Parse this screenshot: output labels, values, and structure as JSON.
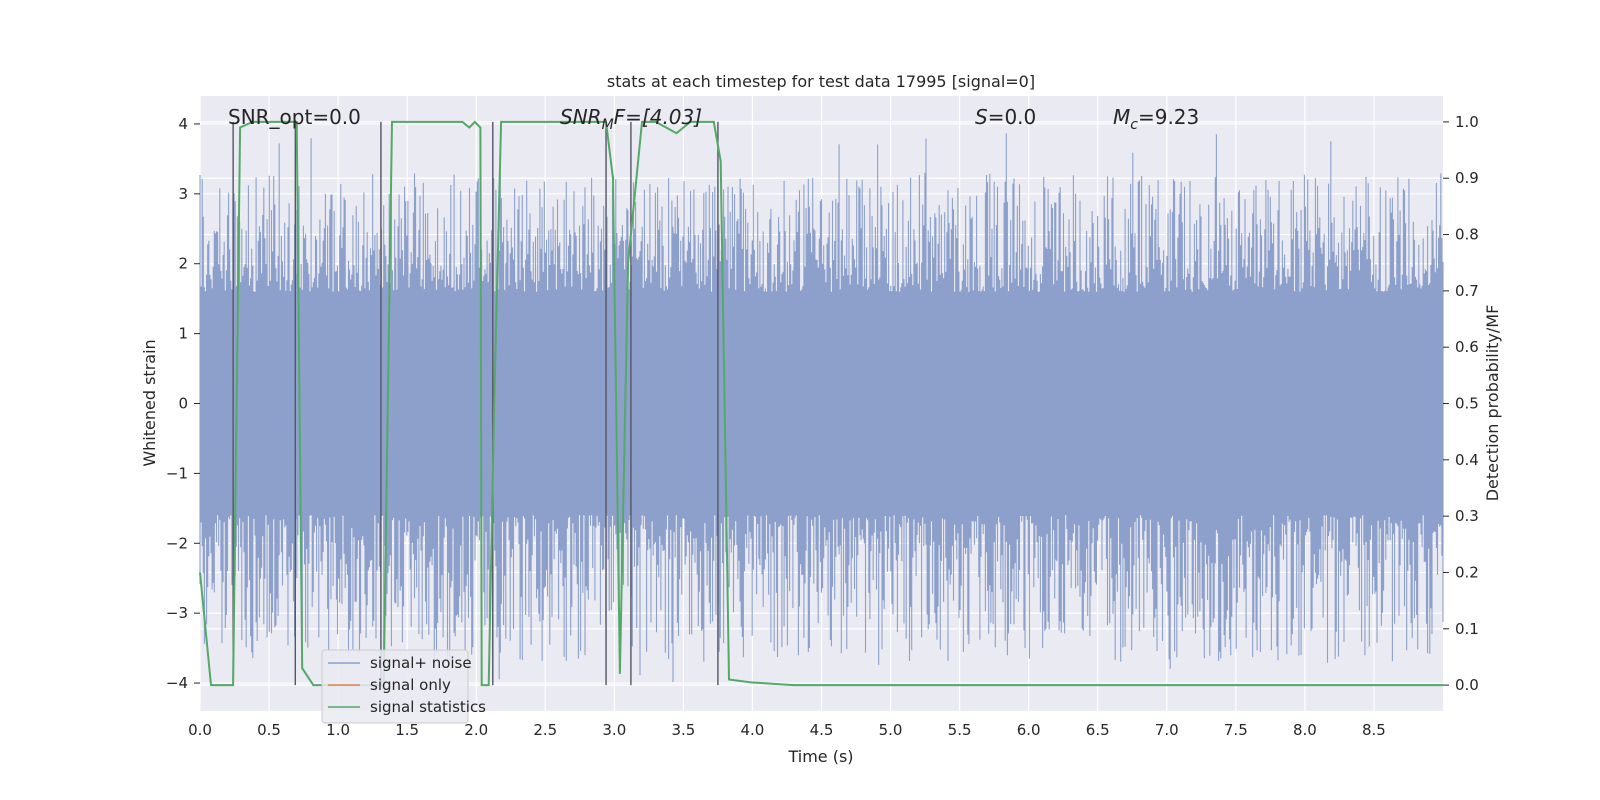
{
  "chart_data": {
    "type": "line",
    "title": "stats at each timestep for test data 17995 [signal=0]",
    "xlabel": "Time (s)",
    "ylabel": "Whitened strain",
    "y2label": "Detection probability/MF",
    "xlim": [
      0,
      9
    ],
    "ylim": [
      -4.4,
      4.4
    ],
    "y2lim": [
      -0.046,
      1.046
    ],
    "xticks": [
      0.0,
      0.5,
      1.0,
      1.5,
      2.0,
      2.5,
      3.0,
      3.5,
      4.0,
      4.5,
      5.0,
      5.5,
      6.0,
      6.5,
      7.0,
      7.5,
      8.0,
      8.5
    ],
    "xtick_labels": [
      "0.0",
      "0.5",
      "1.0",
      "1.5",
      "2.0",
      "2.5",
      "3.0",
      "3.5",
      "4.0",
      "4.5",
      "5.0",
      "5.5",
      "6.0",
      "6.5",
      "7.0",
      "7.5",
      "8.0",
      "8.5"
    ],
    "yticks": [
      -4,
      -3,
      -2,
      -1,
      0,
      1,
      2,
      3,
      4
    ],
    "ytick_labels": [
      "−4",
      "−3",
      "−2",
      "−1",
      "0",
      "1",
      "2",
      "3",
      "4"
    ],
    "y2ticks": [
      0.0,
      0.1,
      0.2,
      0.3,
      0.4,
      0.5,
      0.6,
      0.7,
      0.8,
      0.9,
      1.0
    ],
    "y2tick_labels": [
      "0.0",
      "0.1",
      "0.2",
      "0.3",
      "0.4",
      "0.5",
      "0.6",
      "0.7",
      "0.8",
      "0.9",
      "1.0"
    ],
    "annotations": {
      "snr_opt": "SNR_opt=0.0",
      "snr_mf_base": "SNR",
      "snr_mf_sub": "M",
      "snr_mf_rest": "F=[4.03]",
      "s_italic": "S",
      "s_rest": "=0.0",
      "mc_base": "M",
      "mc_sub": "c",
      "mc_rest": "=9.23"
    },
    "series": [
      {
        "name": "signal+ noise",
        "color": "#8da0cb",
        "kind": "noise",
        "seed": 17995,
        "core_sigma": 1.6,
        "peak_range": [
          1.5,
          3.3
        ]
      },
      {
        "name": "signal only",
        "color": "#dd8452",
        "kind": "line",
        "x": [],
        "y": []
      },
      {
        "name": "signal statistics",
        "color": "#55a868",
        "kind": "line",
        "axis": "right",
        "x": [
          0.0,
          0.08,
          0.24,
          0.29,
          0.38,
          0.65,
          0.7,
          0.74,
          0.82,
          1.33,
          1.36,
          1.39,
          1.9,
          1.95,
          1.99,
          2.03,
          2.04,
          2.09,
          2.13,
          2.18,
          2.9,
          2.94,
          2.99,
          3.04,
          3.1,
          3.2,
          3.3,
          3.45,
          3.55,
          3.65,
          3.72,
          3.77,
          3.83,
          3.98,
          4.3,
          9.0
        ],
        "y": [
          0.2,
          0.0,
          0.0,
          0.99,
          1.0,
          1.0,
          1.0,
          0.03,
          0.0,
          0.0,
          0.5,
          1.0,
          1.0,
          0.99,
          1.0,
          0.99,
          0.0,
          0.0,
          0.5,
          1.0,
          1.0,
          1.0,
          0.9,
          0.02,
          0.75,
          1.0,
          1.0,
          0.98,
          1.0,
          1.0,
          1.0,
          0.93,
          0.01,
          0.005,
          0.0,
          0.0
        ]
      }
    ],
    "vlines": [
      0.24,
      0.69,
      1.31,
      2.12,
      2.94,
      3.12,
      3.75
    ],
    "legend_loc": "lower-left"
  }
}
